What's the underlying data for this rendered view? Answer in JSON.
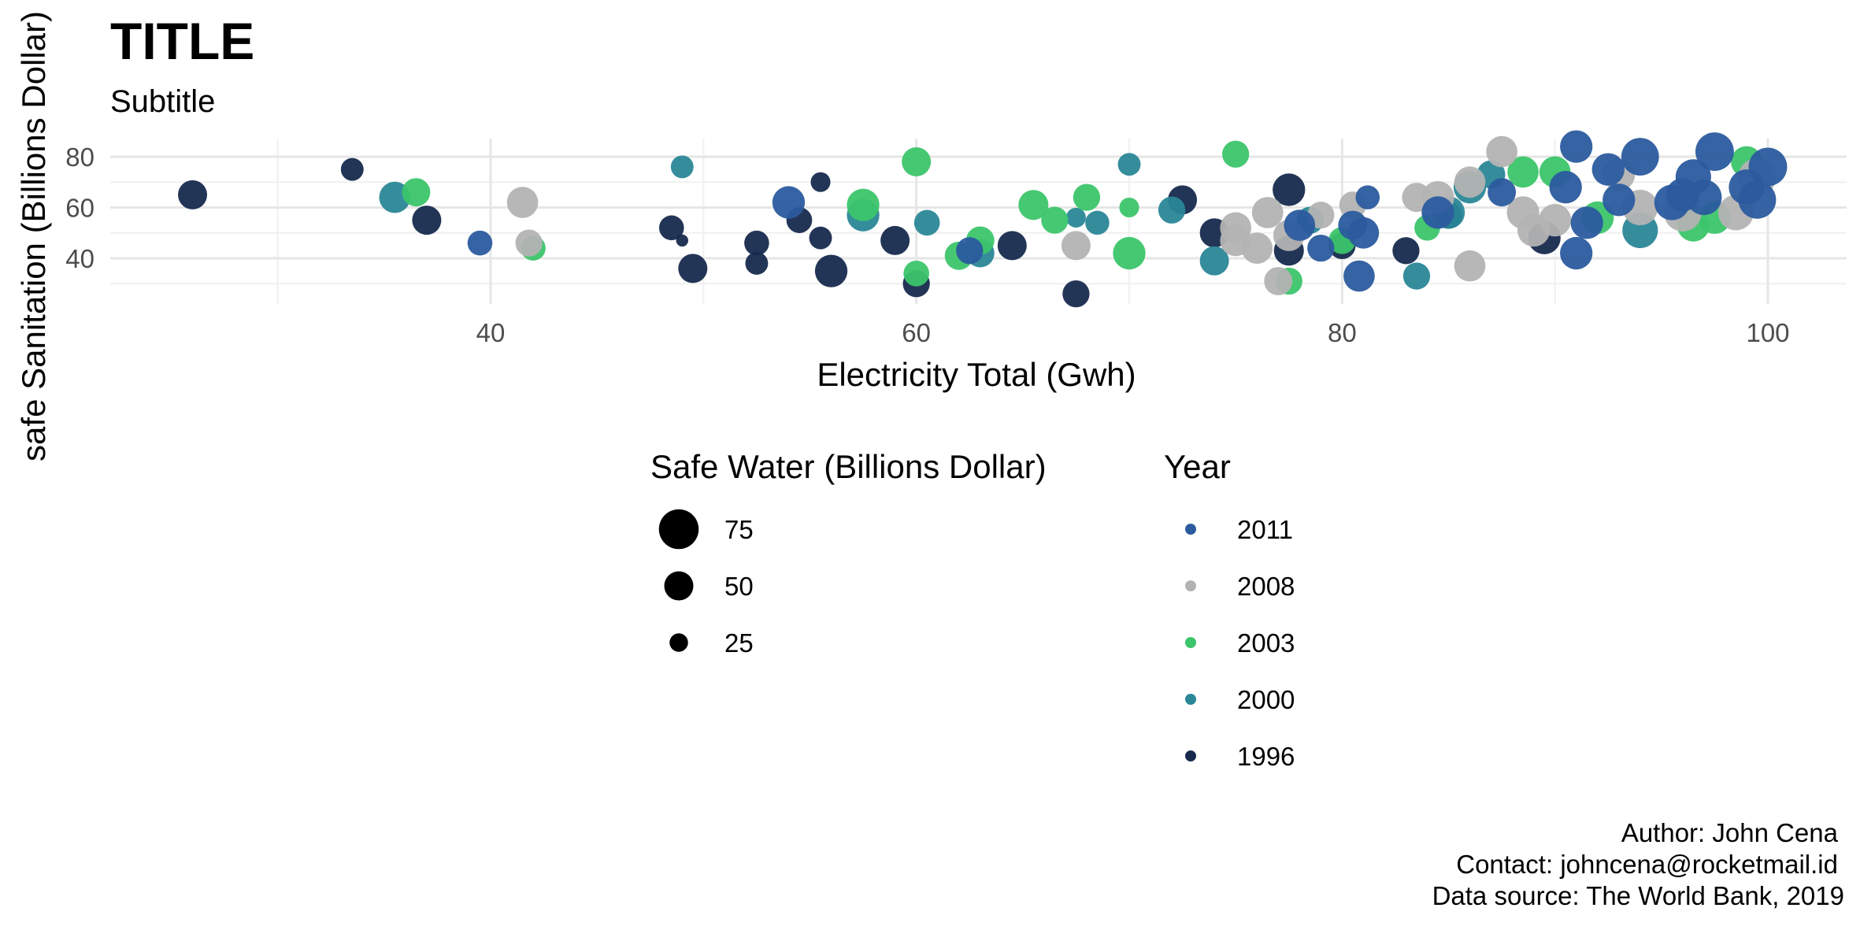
{
  "chart_data": {
    "type": "scatter",
    "title": "TITLE",
    "subtitle": "Subtitle",
    "xlabel": "Electricity Total (Gwh)",
    "ylabel": "safe Sanitation (Billions Dollar)",
    "xlim": [
      21,
      103
    ],
    "ylim": [
      26,
      84
    ],
    "x_ticks": [
      40,
      60,
      80,
      100
    ],
    "y_ticks": [
      40,
      60,
      80
    ],
    "grid": true,
    "legend_position": "bottom",
    "size_legend": {
      "title": "Safe Water (Billions Dollar)",
      "entries": [
        {
          "label": "75",
          "value": 75
        },
        {
          "label": "50",
          "value": 50
        },
        {
          "label": "25",
          "value": 25
        }
      ]
    },
    "color_legend": {
      "title": "Year",
      "entries": [
        {
          "label": "2011",
          "color": "#2b5b9e"
        },
        {
          "label": "2008",
          "color": "#b3b3b3"
        },
        {
          "label": "2003",
          "color": "#3cc56b"
        },
        {
          "label": "2000",
          "color": "#2a8797"
        },
        {
          "label": "1996",
          "color": "#172a4d"
        }
      ]
    },
    "series": [
      {
        "year": "1996",
        "color": "#172a4d",
        "points": [
          {
            "x": 26,
            "y": 65,
            "size": 50
          },
          {
            "x": 33.5,
            "y": 75,
            "size": 35
          },
          {
            "x": 37,
            "y": 55,
            "size": 50
          },
          {
            "x": 48.5,
            "y": 52,
            "size": 40
          },
          {
            "x": 49,
            "y": 47,
            "size": 10
          },
          {
            "x": 49.5,
            "y": 36,
            "size": 50
          },
          {
            "x": 52.5,
            "y": 46,
            "size": 40
          },
          {
            "x": 52.5,
            "y": 38,
            "size": 35
          },
          {
            "x": 54.5,
            "y": 55,
            "size": 42
          },
          {
            "x": 55.5,
            "y": 70,
            "size": 28
          },
          {
            "x": 55.5,
            "y": 48,
            "size": 35
          },
          {
            "x": 56,
            "y": 35,
            "size": 58
          },
          {
            "x": 59,
            "y": 47,
            "size": 50
          },
          {
            "x": 60,
            "y": 30,
            "size": 45
          },
          {
            "x": 64.5,
            "y": 45,
            "size": 50
          },
          {
            "x": 67.5,
            "y": 26,
            "size": 45
          },
          {
            "x": 72.5,
            "y": 63,
            "size": 50
          },
          {
            "x": 74,
            "y": 50,
            "size": 50
          },
          {
            "x": 77.5,
            "y": 67,
            "size": 58
          },
          {
            "x": 77.5,
            "y": 43,
            "size": 52
          },
          {
            "x": 80,
            "y": 45,
            "size": 45
          },
          {
            "x": 83,
            "y": 43,
            "size": 45
          },
          {
            "x": 85,
            "y": 57,
            "size": 45
          },
          {
            "x": 89.5,
            "y": 48,
            "size": 58
          }
        ]
      },
      {
        "year": "2000",
        "color": "#2a8797",
        "points": [
          {
            "x": 35.5,
            "y": 64,
            "size": 55
          },
          {
            "x": 49,
            "y": 76,
            "size": 35
          },
          {
            "x": 57.5,
            "y": 57,
            "size": 58
          },
          {
            "x": 60.5,
            "y": 54,
            "size": 42
          },
          {
            "x": 63,
            "y": 42,
            "size": 48
          },
          {
            "x": 67.5,
            "y": 56,
            "size": 28
          },
          {
            "x": 68.5,
            "y": 54,
            "size": 38
          },
          {
            "x": 70,
            "y": 77,
            "size": 35
          },
          {
            "x": 72,
            "y": 59,
            "size": 45
          },
          {
            "x": 74,
            "y": 39,
            "size": 50
          },
          {
            "x": 78.5,
            "y": 55,
            "size": 45
          },
          {
            "x": 83.5,
            "y": 33,
            "size": 45
          },
          {
            "x": 85,
            "y": 58,
            "size": 58
          },
          {
            "x": 86,
            "y": 68,
            "size": 58
          },
          {
            "x": 87,
            "y": 73,
            "size": 48
          },
          {
            "x": 94,
            "y": 51,
            "size": 65
          }
        ]
      },
      {
        "year": "2003",
        "color": "#3cc56b",
        "points": [
          {
            "x": 36.5,
            "y": 66,
            "size": 48
          },
          {
            "x": 42,
            "y": 44,
            "size": 40
          },
          {
            "x": 57.5,
            "y": 61,
            "size": 58
          },
          {
            "x": 60,
            "y": 78,
            "size": 50
          },
          {
            "x": 60,
            "y": 34,
            "size": 42
          },
          {
            "x": 62,
            "y": 41,
            "size": 48
          },
          {
            "x": 63,
            "y": 47,
            "size": 48
          },
          {
            "x": 65.5,
            "y": 61,
            "size": 52
          },
          {
            "x": 66.5,
            "y": 55,
            "size": 45
          },
          {
            "x": 68,
            "y": 64,
            "size": 45
          },
          {
            "x": 70,
            "y": 60,
            "size": 28
          },
          {
            "x": 70,
            "y": 42,
            "size": 58
          },
          {
            "x": 75,
            "y": 81,
            "size": 45
          },
          {
            "x": 77.5,
            "y": 31,
            "size": 45
          },
          {
            "x": 80,
            "y": 47,
            "size": 45
          },
          {
            "x": 84,
            "y": 52,
            "size": 42
          },
          {
            "x": 88.5,
            "y": 74,
            "size": 55
          },
          {
            "x": 90,
            "y": 74,
            "size": 55
          },
          {
            "x": 92,
            "y": 56,
            "size": 58
          },
          {
            "x": 96.5,
            "y": 53,
            "size": 58
          },
          {
            "x": 97.5,
            "y": 56,
            "size": 58
          },
          {
            "x": 99,
            "y": 78,
            "size": 55
          }
        ]
      },
      {
        "year": "2008",
        "color": "#b3b3b3",
        "points": [
          {
            "x": 41.5,
            "y": 62,
            "size": 55
          },
          {
            "x": 41.8,
            "y": 46,
            "size": 45
          },
          {
            "x": 67.5,
            "y": 45,
            "size": 50
          },
          {
            "x": 75,
            "y": 52,
            "size": 55
          },
          {
            "x": 75,
            "y": 47,
            "size": 55
          },
          {
            "x": 76,
            "y": 44,
            "size": 55
          },
          {
            "x": 76.5,
            "y": 58,
            "size": 55
          },
          {
            "x": 77,
            "y": 31,
            "size": 48
          },
          {
            "x": 77.5,
            "y": 49,
            "size": 55
          },
          {
            "x": 79,
            "y": 57,
            "size": 45
          },
          {
            "x": 80.5,
            "y": 61,
            "size": 45
          },
          {
            "x": 83.5,
            "y": 64,
            "size": 50
          },
          {
            "x": 84.5,
            "y": 64,
            "size": 58
          },
          {
            "x": 86,
            "y": 70,
            "size": 55
          },
          {
            "x": 86,
            "y": 37,
            "size": 55
          },
          {
            "x": 87.5,
            "y": 82,
            "size": 55
          },
          {
            "x": 88.5,
            "y": 58,
            "size": 58
          },
          {
            "x": 89,
            "y": 51,
            "size": 58
          },
          {
            "x": 90,
            "y": 55,
            "size": 58
          },
          {
            "x": 93,
            "y": 73,
            "size": 58
          },
          {
            "x": 94,
            "y": 60,
            "size": 65
          },
          {
            "x": 96,
            "y": 58,
            "size": 70
          },
          {
            "x": 98.5,
            "y": 58,
            "size": 65
          },
          {
            "x": 99.5,
            "y": 72,
            "size": 70
          }
        ]
      },
      {
        "year": "2011",
        "color": "#2b5b9e",
        "points": [
          {
            "x": 39.5,
            "y": 46,
            "size": 40
          },
          {
            "x": 54,
            "y": 62,
            "size": 58
          },
          {
            "x": 62.5,
            "y": 43,
            "size": 45
          },
          {
            "x": 78,
            "y": 53,
            "size": 55
          },
          {
            "x": 79,
            "y": 44,
            "size": 45
          },
          {
            "x": 80.5,
            "y": 53,
            "size": 50
          },
          {
            "x": 81,
            "y": 50,
            "size": 55
          },
          {
            "x": 81.2,
            "y": 64,
            "size": 38
          },
          {
            "x": 80.8,
            "y": 33,
            "size": 55
          },
          {
            "x": 84.5,
            "y": 58,
            "size": 58
          },
          {
            "x": 87.5,
            "y": 66,
            "size": 48
          },
          {
            "x": 90.5,
            "y": 68,
            "size": 58
          },
          {
            "x": 91,
            "y": 84,
            "size": 58
          },
          {
            "x": 91,
            "y": 42,
            "size": 58
          },
          {
            "x": 91.5,
            "y": 54,
            "size": 58
          },
          {
            "x": 92.5,
            "y": 75,
            "size": 58
          },
          {
            "x": 93,
            "y": 63,
            "size": 58
          },
          {
            "x": 94,
            "y": 80,
            "size": 70
          },
          {
            "x": 95.5,
            "y": 62,
            "size": 65
          },
          {
            "x": 96,
            "y": 65,
            "size": 60
          },
          {
            "x": 96.5,
            "y": 72,
            "size": 65
          },
          {
            "x": 97,
            "y": 64,
            "size": 65
          },
          {
            "x": 97.5,
            "y": 82,
            "size": 72
          },
          {
            "x": 99,
            "y": 68,
            "size": 65
          },
          {
            "x": 99.5,
            "y": 63,
            "size": 70
          },
          {
            "x": 100,
            "y": 76,
            "size": 72
          }
        ]
      }
    ],
    "caption": [
      "Author: John Cena",
      "Contact: johncena@rocketmail.id",
      "Data source: The World Bank, 2019"
    ]
  }
}
